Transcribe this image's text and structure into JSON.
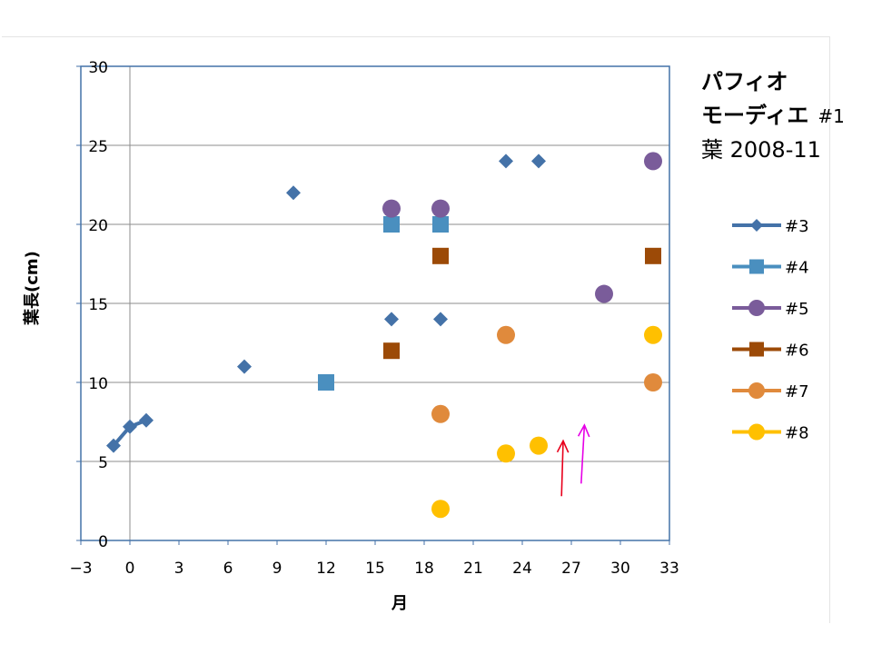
{
  "title": {
    "line1": "パフィオ",
    "line2": "モーディエ",
    "line2_suffix": "#1",
    "line3": "葉  2008-11"
  },
  "chart_data": {
    "type": "scatter",
    "xlabel": "月",
    "ylabel": "葉長(cm)",
    "xlim": [
      -3,
      33
    ],
    "ylim": [
      0,
      30
    ],
    "xticks": [
      -3,
      0,
      3,
      6,
      9,
      12,
      15,
      18,
      21,
      24,
      27,
      30,
      33
    ],
    "yticks": [
      0,
      5,
      10,
      15,
      20,
      25,
      30
    ],
    "grid": "horizontal",
    "legend_position": "right",
    "series": [
      {
        "name": "#3",
        "color": "#4472a8",
        "marker": "diamond",
        "line": true,
        "points": [
          [
            -1,
            6
          ],
          [
            0,
            7.2
          ],
          [
            1,
            7.6
          ],
          [
            7,
            11
          ],
          [
            10,
            22
          ],
          [
            16,
            14
          ],
          [
            19,
            14
          ],
          [
            23,
            24
          ],
          [
            25,
            24
          ]
        ]
      },
      {
        "name": "#4",
        "color": "#4a8fbf",
        "marker": "square",
        "line": false,
        "points": [
          [
            12,
            10
          ],
          [
            16,
            20
          ],
          [
            19,
            20
          ]
        ]
      },
      {
        "name": "#5",
        "color": "#7a5c9a",
        "marker": "circle",
        "line": false,
        "points": [
          [
            16,
            21
          ],
          [
            19,
            21
          ],
          [
            29,
            15.6
          ],
          [
            32,
            24
          ]
        ]
      },
      {
        "name": "#6",
        "color": "#9c4a07",
        "marker": "square",
        "line": false,
        "points": [
          [
            16,
            12
          ],
          [
            19,
            18
          ],
          [
            32,
            18
          ]
        ]
      },
      {
        "name": "#7",
        "color": "#e08a3c",
        "marker": "circle",
        "line": false,
        "points": [
          [
            19,
            8
          ],
          [
            23,
            13
          ],
          [
            32,
            10
          ]
        ]
      },
      {
        "name": "#8",
        "color": "#ffc000",
        "marker": "circle",
        "line": false,
        "points": [
          [
            19,
            2
          ],
          [
            23,
            5.5
          ],
          [
            25,
            6
          ],
          [
            32,
            13
          ]
        ]
      }
    ],
    "annotations": [
      {
        "type": "arrow",
        "color": "#e8001c",
        "from": [
          26.4,
          2.8
        ],
        "to": [
          26.5,
          6.3
        ]
      },
      {
        "type": "arrow",
        "color": "#e600e6",
        "from": [
          27.6,
          3.6
        ],
        "to": [
          27.8,
          7.3
        ]
      }
    ]
  }
}
